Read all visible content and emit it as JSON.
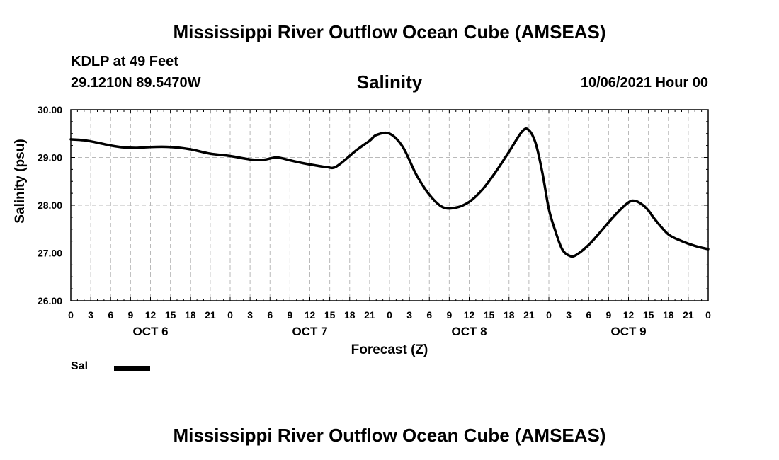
{
  "header": {
    "title": "Mississippi River Outflow Ocean Cube (AMSEAS)",
    "station": "KDLP at 49 Feet",
    "coordinates": "29.1210N  89.5470W",
    "datetime": "10/06/2021 Hour 00"
  },
  "footer": {
    "title": "Mississippi River Outflow Ocean Cube (AMSEAS)"
  },
  "chart_data": {
    "type": "line",
    "title": "Salinity",
    "xlabel": "Forecast (Z)",
    "ylabel": "Salinity (psu)",
    "xlim": [
      0,
      96
    ],
    "ylim": [
      26.0,
      30.0
    ],
    "grid": true,
    "y_ticks": [
      "26.00",
      "27.00",
      "28.00",
      "29.00",
      "30.00"
    ],
    "x_ticks": [
      "0",
      "3",
      "6",
      "9",
      "12",
      "15",
      "18",
      "21",
      "0",
      "3",
      "6",
      "9",
      "12",
      "15",
      "18",
      "21",
      "0",
      "3",
      "6",
      "9",
      "12",
      "15",
      "18",
      "21",
      "0",
      "3",
      "6",
      "9",
      "12",
      "15",
      "18",
      "21",
      "0"
    ],
    "day_labels": [
      {
        "label": "OCT 6",
        "hour": 12
      },
      {
        "label": "OCT 7",
        "hour": 36
      },
      {
        "label": "OCT 8",
        "hour": 60
      },
      {
        "label": "OCT 9",
        "hour": 84
      }
    ],
    "legend": {
      "position": "bottom-left"
    },
    "series": [
      {
        "name": "Sal",
        "color": "#000000",
        "x": [
          0,
          2,
          4,
          6,
          8,
          10,
          12,
          15,
          18,
          21,
          24,
          27,
          29,
          31,
          33,
          35,
          37,
          38.5,
          40,
          43,
          45,
          46,
          48,
          50,
          52,
          54,
          56,
          58,
          60,
          62,
          64,
          66,
          68,
          69,
          70,
          71,
          72,
          73,
          74,
          75,
          76,
          78,
          80,
          82,
          84,
          85,
          86,
          87,
          88,
          90,
          92,
          94,
          96
        ],
        "y": [
          29.38,
          29.36,
          29.31,
          29.25,
          29.21,
          29.2,
          29.22,
          29.22,
          29.17,
          29.08,
          29.03,
          28.96,
          28.95,
          29.0,
          28.94,
          28.88,
          28.83,
          28.8,
          28.81,
          29.15,
          29.35,
          29.47,
          29.5,
          29.22,
          28.65,
          28.22,
          27.96,
          27.95,
          28.07,
          28.33,
          28.7,
          29.12,
          29.55,
          29.57,
          29.3,
          28.7,
          27.92,
          27.45,
          27.08,
          26.95,
          26.95,
          27.17,
          27.48,
          27.8,
          28.06,
          28.09,
          28.02,
          27.89,
          27.7,
          27.39,
          27.25,
          27.15,
          27.08
        ]
      }
    ]
  }
}
